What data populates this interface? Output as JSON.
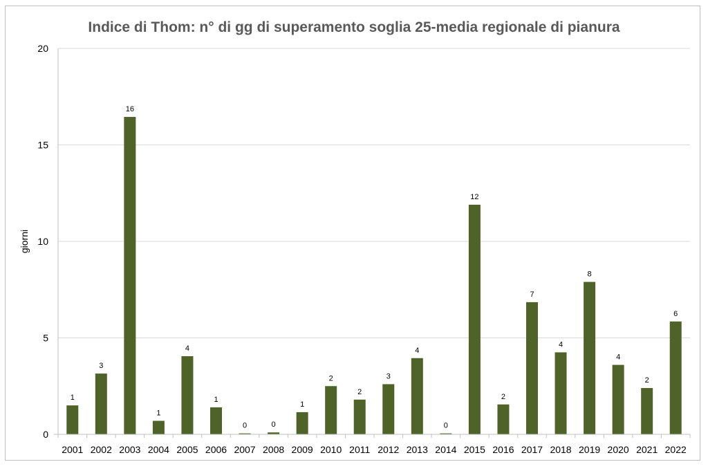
{
  "chart_data": {
    "type": "bar",
    "title": "Indice di Thom: n° di gg di superamento soglia 25-media regionale di pianura",
    "xlabel": "",
    "ylabel": "giorni",
    "ylim": [
      0,
      20
    ],
    "yticks": [
      0,
      5,
      10,
      15,
      20
    ],
    "grid": true,
    "legend": "none",
    "bar_color": "#4f6228",
    "categories": [
      "2001",
      "2002",
      "2003",
      "2004",
      "2005",
      "2006",
      "2007",
      "2008",
      "2009",
      "2010",
      "2011",
      "2012",
      "2013",
      "2014",
      "2015",
      "2016",
      "2017",
      "2018",
      "2019",
      "2020",
      "2021",
      "2022"
    ],
    "values": [
      1.5,
      3.15,
      16.45,
      0.7,
      4.05,
      1.4,
      0.05,
      0.1,
      1.15,
      2.5,
      1.8,
      2.6,
      3.95,
      0.05,
      11.9,
      1.55,
      6.85,
      4.25,
      7.9,
      3.6,
      2.4,
      5.85
    ],
    "data_labels": [
      "1",
      "3",
      "16",
      "1",
      "4",
      "1",
      "0",
      "0",
      "1",
      "2",
      "2",
      "3",
      "4",
      "0",
      "12",
      "2",
      "7",
      "4",
      "8",
      "4",
      "2",
      "6"
    ]
  }
}
